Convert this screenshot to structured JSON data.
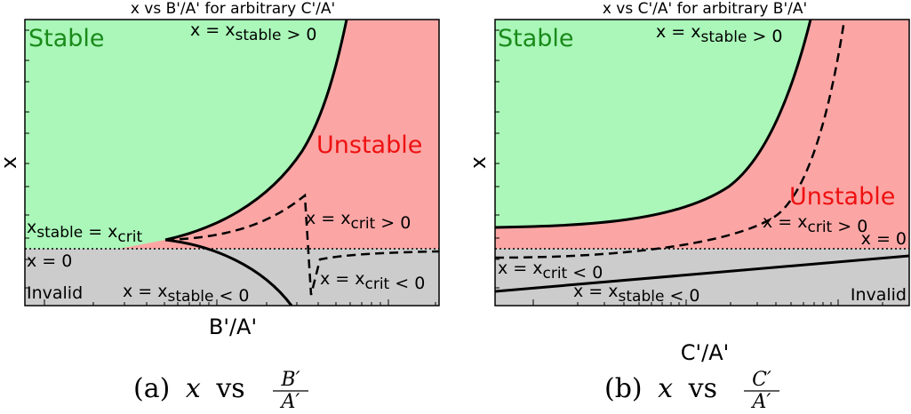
{
  "colors": {
    "stable": "#aaf7b9",
    "unstable": "#fba6a5",
    "invalid": "#cccccc",
    "stable_text": "#1a8a1a",
    "unstable_text": "#ee1111"
  },
  "chart_data": [
    {
      "type": "area",
      "title": "x vs B'/A' for arbitrary C'/A'",
      "xlabel": "B'/A'",
      "ylabel": "x",
      "caption": {
        "prefix": "(a)",
        "var": "x",
        "vs": "vs",
        "num": "B′",
        "den": "A′"
      },
      "regions": {
        "stable": "Stable",
        "unstable": "Unstable",
        "invalid": "Invalid"
      },
      "annotations": {
        "xstable_pos": "x = xstable > 0",
        "xstable_neg": "x = xstable < 0",
        "xcrit_pos": "x = xcrit > 0",
        "xcrit_neg": "x = xcrit < 0",
        "xstable_eq_xcrit": "xstable = xcrit",
        "x_zero": "x = 0"
      }
    },
    {
      "type": "area",
      "title": "x vs C'/A' for arbitrary B'/A'",
      "xlabel": "C'/A'",
      "ylabel": "x",
      "caption": {
        "prefix": "(b)",
        "var": "x",
        "vs": "vs",
        "num": "C′",
        "den": "A′"
      },
      "regions": {
        "stable": "Stable",
        "unstable": "Unstable",
        "invalid": "Invalid"
      },
      "annotations": {
        "xstable_pos": "x = xstable > 0",
        "xstable_neg": "x = xstable < 0",
        "xcrit_pos": "x = xcrit > 0",
        "xcrit_neg": "x = xcrit < 0",
        "x_zero": "x = 0"
      }
    }
  ]
}
